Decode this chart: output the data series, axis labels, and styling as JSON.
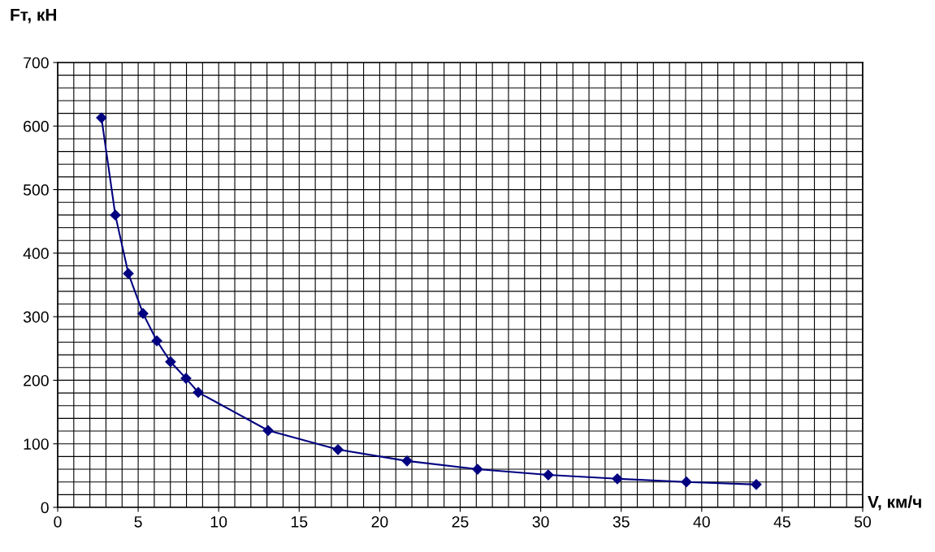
{
  "chart_data": {
    "type": "line",
    "xlabel": "V, км/ч",
    "ylabel": "Fт, кН",
    "x": [
      2.72,
      3.58,
      4.39,
      5.3,
      6.16,
      7.01,
      7.97,
      8.73,
      13.07,
      17.41,
      21.7,
      26.08,
      30.47,
      34.76,
      39.05,
      43.39
    ],
    "series": [
      {
        "color": "#000080",
        "values": [
          613,
          460,
          368,
          305,
          262,
          229,
          203,
          181,
          121,
          91,
          73,
          60,
          51,
          45,
          40,
          36
        ]
      }
    ],
    "xlim": [
      0,
      50
    ],
    "ylim": [
      0,
      700
    ],
    "xticks": [
      0,
      5,
      10,
      15,
      20,
      25,
      30,
      35,
      40,
      45,
      50
    ],
    "yticks": [
      0,
      100,
      200,
      300,
      400,
      500,
      600,
      700
    ],
    "grid": true,
    "marker": "diamond",
    "line_style": "solid"
  }
}
